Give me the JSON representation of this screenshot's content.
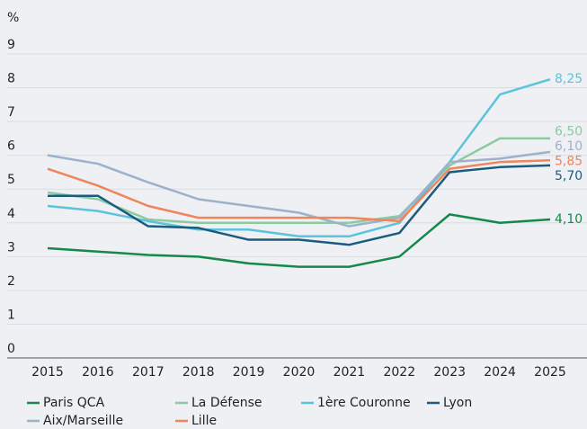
{
  "chart_data": {
    "type": "line",
    "y_label": "%",
    "x": [
      2015,
      2016,
      2017,
      2018,
      2019,
      2020,
      2021,
      2022,
      2023,
      2024,
      2025
    ],
    "xlim": [
      2015,
      2025
    ],
    "xticks": [
      2015,
      2016,
      2017,
      2018,
      2019,
      2020,
      2021,
      2022,
      2023,
      2024,
      2025
    ],
    "ylim": [
      0,
      9
    ],
    "yticks": [
      0,
      1,
      2,
      3,
      4,
      5,
      6,
      7,
      8,
      9
    ],
    "grid": true,
    "legend": "bottom",
    "series": [
      {
        "name": "Paris QCA",
        "color": "#16894a",
        "values": [
          3.25,
          3.15,
          3.05,
          3.0,
          2.8,
          2.7,
          2.7,
          3.0,
          4.25,
          4.0,
          4.1
        ],
        "value_labels": [
          null,
          null,
          null,
          null,
          null,
          null,
          null,
          null,
          null,
          null,
          "4,10"
        ]
      },
      {
        "name": "La Défense",
        "color": "#8ccba0",
        "values": [
          4.9,
          4.7,
          4.1,
          4.0,
          4.0,
          4.0,
          4.0,
          4.2,
          5.7,
          6.5,
          6.5
        ],
        "value_labels": [
          null,
          null,
          null,
          null,
          null,
          null,
          null,
          null,
          null,
          null,
          "6,50"
        ]
      },
      {
        "name": "1ère Couronne",
        "color": "#5bc3dc",
        "values": [
          4.5,
          4.35,
          4.05,
          3.8,
          3.8,
          3.6,
          3.6,
          4.0,
          5.8,
          7.8,
          8.25
        ],
        "value_labels": [
          null,
          null,
          null,
          null,
          null,
          null,
          null,
          null,
          null,
          null,
          "8,25"
        ]
      },
      {
        "name": "Lyon",
        "color": "#1b5c7e",
        "values": [
          4.8,
          4.8,
          3.9,
          3.85,
          3.5,
          3.5,
          3.35,
          3.7,
          5.5,
          5.65,
          5.7
        ],
        "value_labels": [
          null,
          null,
          null,
          null,
          null,
          null,
          null,
          null,
          null,
          null,
          "5,70"
        ]
      },
      {
        "name": "Aix/Marseille",
        "color": "#9db1cb",
        "values": [
          6.0,
          5.75,
          5.2,
          4.7,
          4.5,
          4.3,
          3.9,
          4.15,
          5.8,
          5.9,
          6.1
        ],
        "value_labels": [
          null,
          null,
          null,
          null,
          null,
          null,
          null,
          null,
          null,
          null,
          "6,10"
        ]
      },
      {
        "name": "Lille",
        "color": "#f0845a",
        "values": [
          5.6,
          5.1,
          4.5,
          4.15,
          4.15,
          4.15,
          4.15,
          4.05,
          5.6,
          5.8,
          5.85
        ],
        "value_labels": [
          null,
          null,
          null,
          null,
          null,
          null,
          null,
          null,
          null,
          null,
          "5,85"
        ]
      }
    ]
  }
}
